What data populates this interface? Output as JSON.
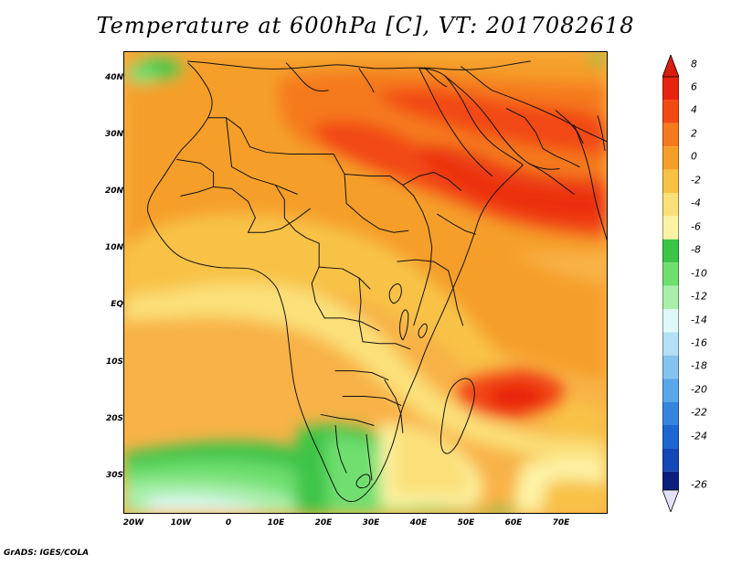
{
  "title": "Temperature at 600hPa [C], VT: 2017082618",
  "credit": "GrADS: IGES/COLA",
  "map": {
    "region": "Africa, Arabian Peninsula and Indian Ocean",
    "variable": "Temperature",
    "level": "600hPa",
    "unit": "C",
    "valid_time": "2017082618",
    "lon_range": [
      -22,
      80
    ],
    "lat_range": [
      -37,
      45
    ],
    "lat_ticks": [
      {
        "value": 40,
        "label": "40N"
      },
      {
        "value": 30,
        "label": "30N"
      },
      {
        "value": 20,
        "label": "20N"
      },
      {
        "value": 10,
        "label": "10N"
      },
      {
        "value": 0,
        "label": "EQ"
      },
      {
        "value": -10,
        "label": "10S"
      },
      {
        "value": -20,
        "label": "20S"
      },
      {
        "value": -30,
        "label": "30S"
      }
    ],
    "lon_ticks": [
      {
        "value": -20,
        "label": "20W"
      },
      {
        "value": -10,
        "label": "10W"
      },
      {
        "value": 0,
        "label": "0"
      },
      {
        "value": 10,
        "label": "10E"
      },
      {
        "value": 20,
        "label": "20E"
      },
      {
        "value": 30,
        "label": "30E"
      },
      {
        "value": 40,
        "label": "40E"
      },
      {
        "value": 50,
        "label": "50E"
      },
      {
        "value": 60,
        "label": "60E"
      },
      {
        "value": 70,
        "label": "70E"
      }
    ]
  },
  "colorbar": {
    "levels": [
      {
        "label": "8",
        "color": "#e8240f"
      },
      {
        "label": "6",
        "color": "#f24a13"
      },
      {
        "label": "4",
        "color": "#f57a1d"
      },
      {
        "label": "2",
        "color": "#f59f2a"
      },
      {
        "label": "0",
        "color": "#f8c247"
      },
      {
        "label": "-2",
        "color": "#fbe079"
      },
      {
        "label": "-4",
        "color": "#fdf3a5"
      },
      {
        "label": "-6",
        "color": "#3cc447"
      },
      {
        "label": "-8",
        "color": "#6fdf70"
      },
      {
        "label": "-10",
        "color": "#a9efaa"
      },
      {
        "label": "-12",
        "color": "#dff8f8"
      },
      {
        "label": "-14",
        "color": "#b4e0f6"
      },
      {
        "label": "-16",
        "color": "#86c3f0"
      },
      {
        "label": "-18",
        "color": "#5aa6ea"
      },
      {
        "label": "-20",
        "color": "#3585df"
      },
      {
        "label": "-22",
        "color": "#1e66d1"
      },
      {
        "label": "-24",
        "color": "#1448b6"
      },
      {
        "label": "-26",
        "color": "#0d1f7c"
      }
    ],
    "top_arrow_color": "#d81d0d",
    "bottom_arrow_color": "#e4e0f7"
  }
}
